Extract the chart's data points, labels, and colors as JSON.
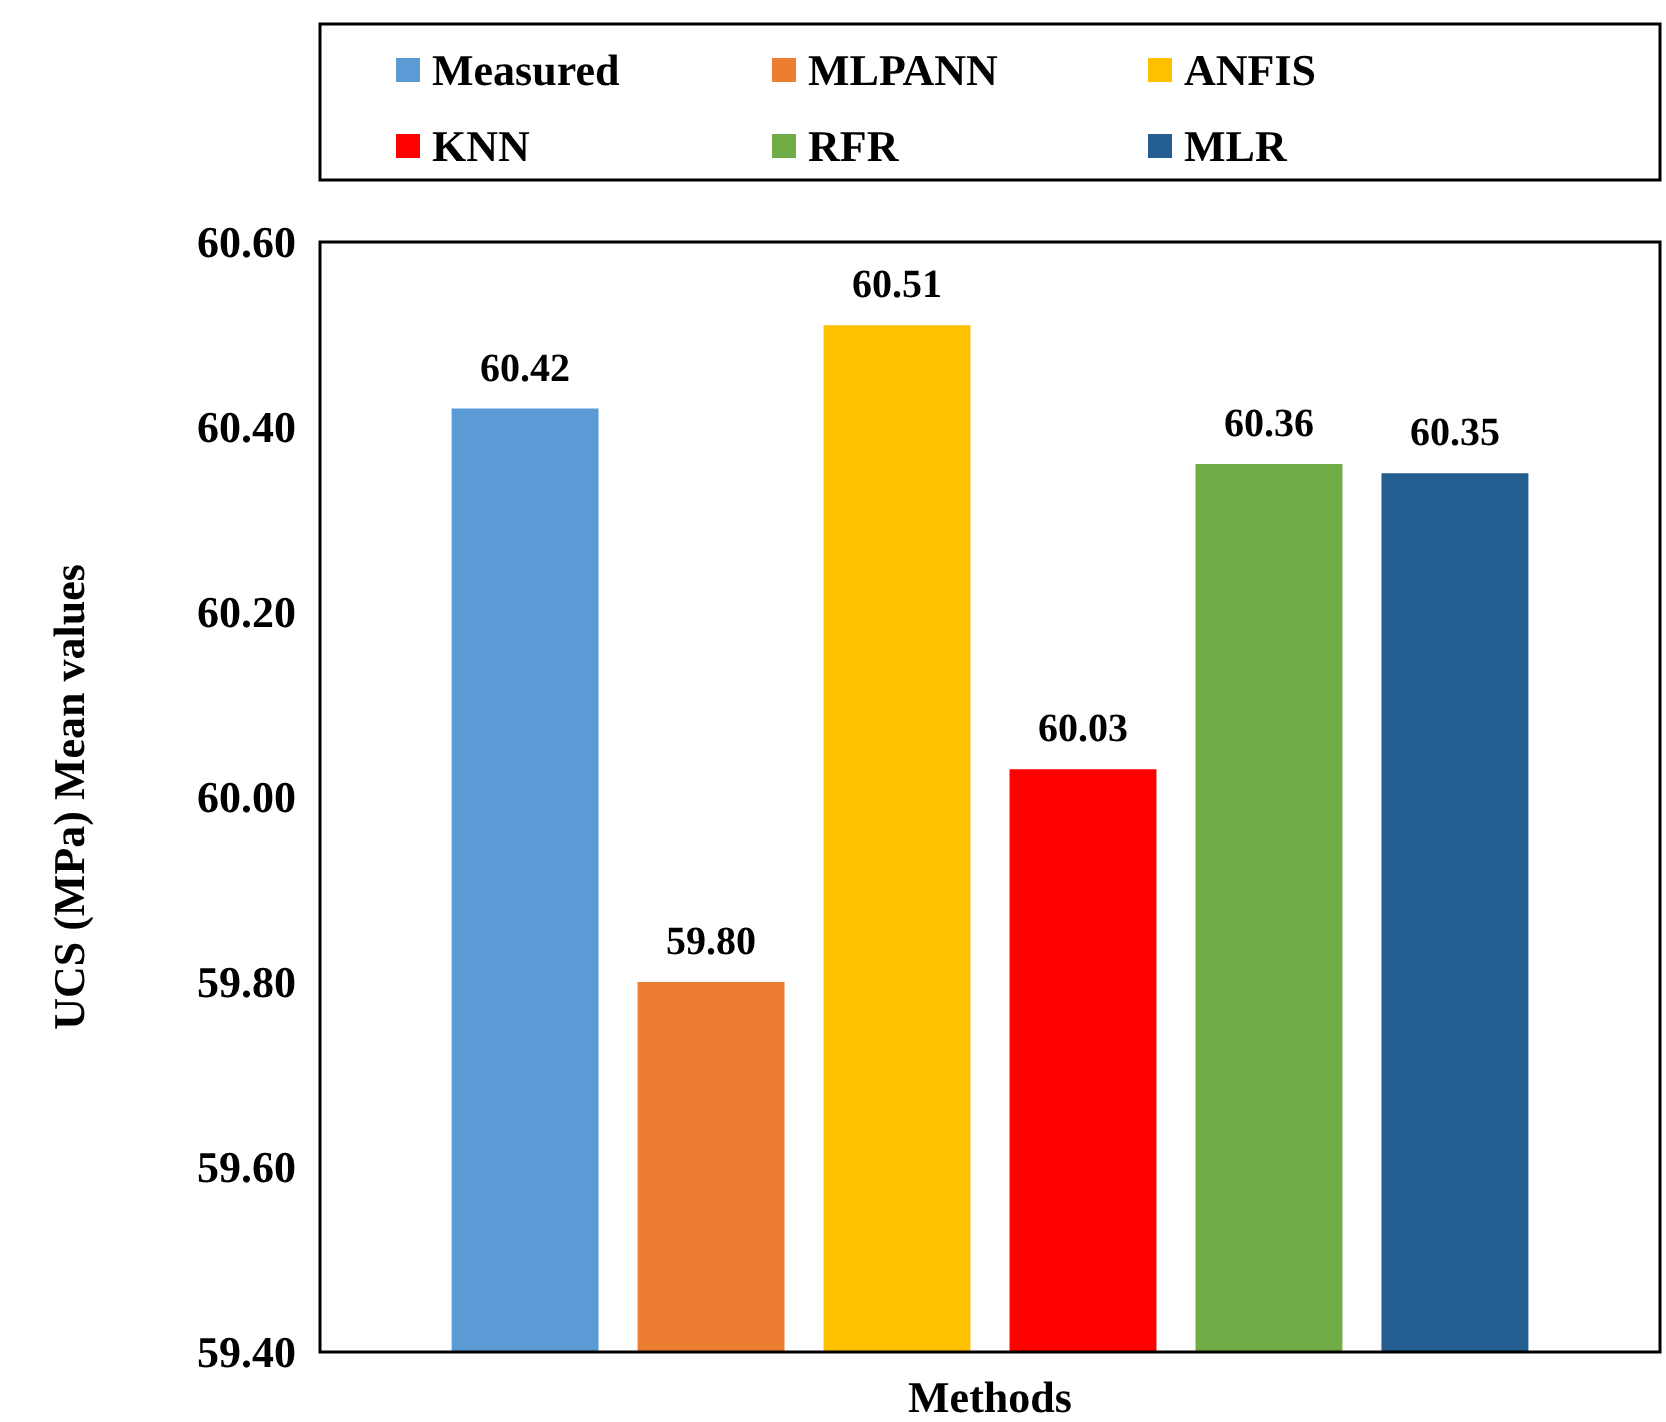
{
  "chart_data": {
    "type": "bar",
    "xlabel": "Methods",
    "ylabel": "UCS (MPa) Mean values",
    "categories": [
      null
    ],
    "series": [
      {
        "name": "Measured",
        "color": "#5b9bd5",
        "values": [
          60.42
        ],
        "value_labels": [
          "60.42"
        ]
      },
      {
        "name": "MLPANN",
        "color": "#ed7d31",
        "values": [
          59.8
        ],
        "value_labels": [
          "59.80"
        ]
      },
      {
        "name": "ANFIS",
        "color": "#ffc000",
        "values": [
          60.51
        ],
        "value_labels": [
          "60.51"
        ]
      },
      {
        "name": "KNN",
        "color": "#ff0000",
        "values": [
          60.03
        ],
        "value_labels": [
          "60.03"
        ]
      },
      {
        "name": "RFR",
        "color": "#70ad47",
        "values": [
          60.36
        ],
        "value_labels": [
          "60.36"
        ]
      },
      {
        "name": "MLR",
        "color": "#255e91",
        "values": [
          60.35
        ],
        "value_labels": [
          "60.35"
        ]
      }
    ],
    "ylim": [
      59.4,
      60.6
    ],
    "yticks": [
      {
        "value": 59.4,
        "label": "59.40"
      },
      {
        "value": 59.6,
        "label": "59.60"
      },
      {
        "value": 59.8,
        "label": "59.80"
      },
      {
        "value": 60.0,
        "label": "60.00"
      },
      {
        "value": 60.2,
        "label": "60.20"
      },
      {
        "value": 60.4,
        "label": "60.40"
      },
      {
        "value": 60.6,
        "label": "60.60"
      }
    ],
    "grid": false,
    "legend": "top"
  }
}
